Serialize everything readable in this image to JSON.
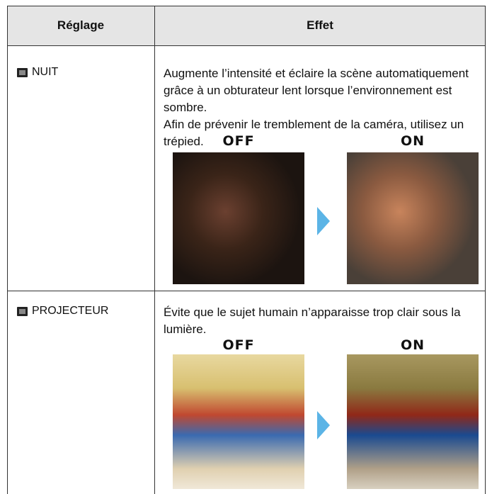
{
  "table": {
    "header": [
      "Réglage",
      "Effet"
    ],
    "rows": [
      {
        "setting": "NUIT",
        "effect": [
          "Augmente l’intensité et éclaire la scène automatiquement grâce à un obturateur lent lorsque l’environnement est sombre.",
          "Afin de prévenir le tremblement de la caméra, utilisez un trépied."
        ],
        "before_label": "OFF",
        "after_label": "ON"
      },
      {
        "setting": "PROJECTEUR",
        "effect": [
          "Évite que le sujet humain n’apparaisse trop clair sous la lumière."
        ],
        "before_label": "OFF",
        "after_label": "ON"
      }
    ]
  }
}
